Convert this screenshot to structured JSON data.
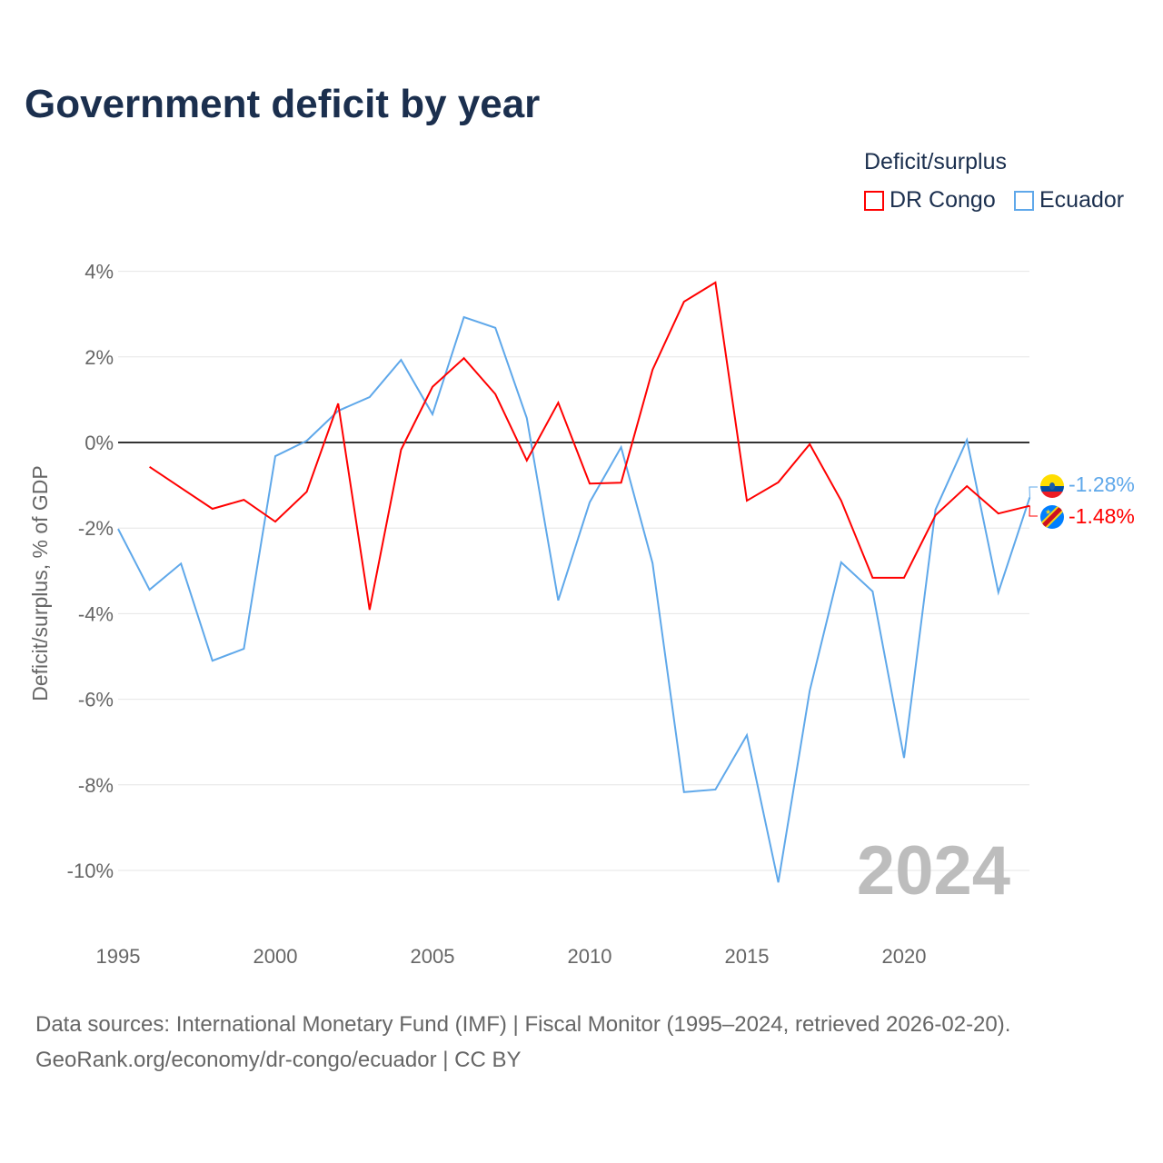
{
  "title": "Government deficit by year",
  "legend_title": "Deficit/surplus",
  "source_line1": "Data sources: International Monetary Fund (IMF) | Fiscal Monitor (1995–2024, retrieved 2026-02-20).",
  "source_line2": "GeoRank.org/economy/dr-congo/ecuador | CC BY",
  "year_watermark": "2024",
  "chart_data": {
    "type": "line",
    "title": "Government deficit by year",
    "xlabel": "",
    "ylabel": "Deficit/surplus, % of GDP",
    "xlim": [
      1995,
      2024
    ],
    "ylim": [
      -10.5,
      4.3
    ],
    "xticks": [
      1995,
      2000,
      2005,
      2010,
      2015,
      2020
    ],
    "yticks": [
      4,
      2,
      0,
      -2,
      -4,
      -6,
      -8,
      -10
    ],
    "ytick_labels": [
      "4%",
      "2%",
      "0%",
      "-2%",
      "-4%",
      "-6%",
      "-8%",
      "-10%"
    ],
    "legend_position": "top-right",
    "series": [
      {
        "name": "DR Congo",
        "color": "#ff0000",
        "end_label": "-1.48%",
        "x": [
          1996,
          1997,
          1998,
          1999,
          2000,
          2001,
          2002,
          2003,
          2004,
          2005,
          2006,
          2007,
          2008,
          2009,
          2010,
          2011,
          2012,
          2013,
          2014,
          2015,
          2016,
          2017,
          2018,
          2019,
          2020,
          2021,
          2022,
          2023,
          2024
        ],
        "values": [
          -0.57,
          -1.06,
          -1.55,
          -1.34,
          -1.85,
          -1.15,
          0.91,
          -3.91,
          -0.17,
          1.3,
          1.97,
          1.13,
          -0.42,
          0.93,
          -0.96,
          -0.94,
          1.7,
          3.29,
          3.74,
          -1.36,
          -0.93,
          -0.04,
          -1.36,
          -3.16,
          -3.16,
          -1.7,
          -1.02,
          -1.66,
          -1.48
        ]
      },
      {
        "name": "Ecuador",
        "color": "#5fa8ea",
        "end_label": "-1.28%",
        "x": [
          1995,
          1996,
          1997,
          1998,
          1999,
          2000,
          2001,
          2002,
          2003,
          2004,
          2005,
          2006,
          2007,
          2008,
          2009,
          2010,
          2011,
          2012,
          2013,
          2014,
          2015,
          2016,
          2017,
          2018,
          2019,
          2020,
          2021,
          2022,
          2023,
          2024
        ],
        "values": [
          -2.02,
          -3.44,
          -2.83,
          -5.1,
          -4.82,
          -0.32,
          0.04,
          0.74,
          1.06,
          1.93,
          0.66,
          2.93,
          2.68,
          0.57,
          -3.69,
          -1.4,
          -0.11,
          -2.82,
          -8.17,
          -8.11,
          -6.84,
          -10.28,
          -5.8,
          -2.8,
          -3.48,
          -7.37,
          -1.57,
          0.06,
          -3.5,
          -1.28
        ]
      }
    ]
  }
}
